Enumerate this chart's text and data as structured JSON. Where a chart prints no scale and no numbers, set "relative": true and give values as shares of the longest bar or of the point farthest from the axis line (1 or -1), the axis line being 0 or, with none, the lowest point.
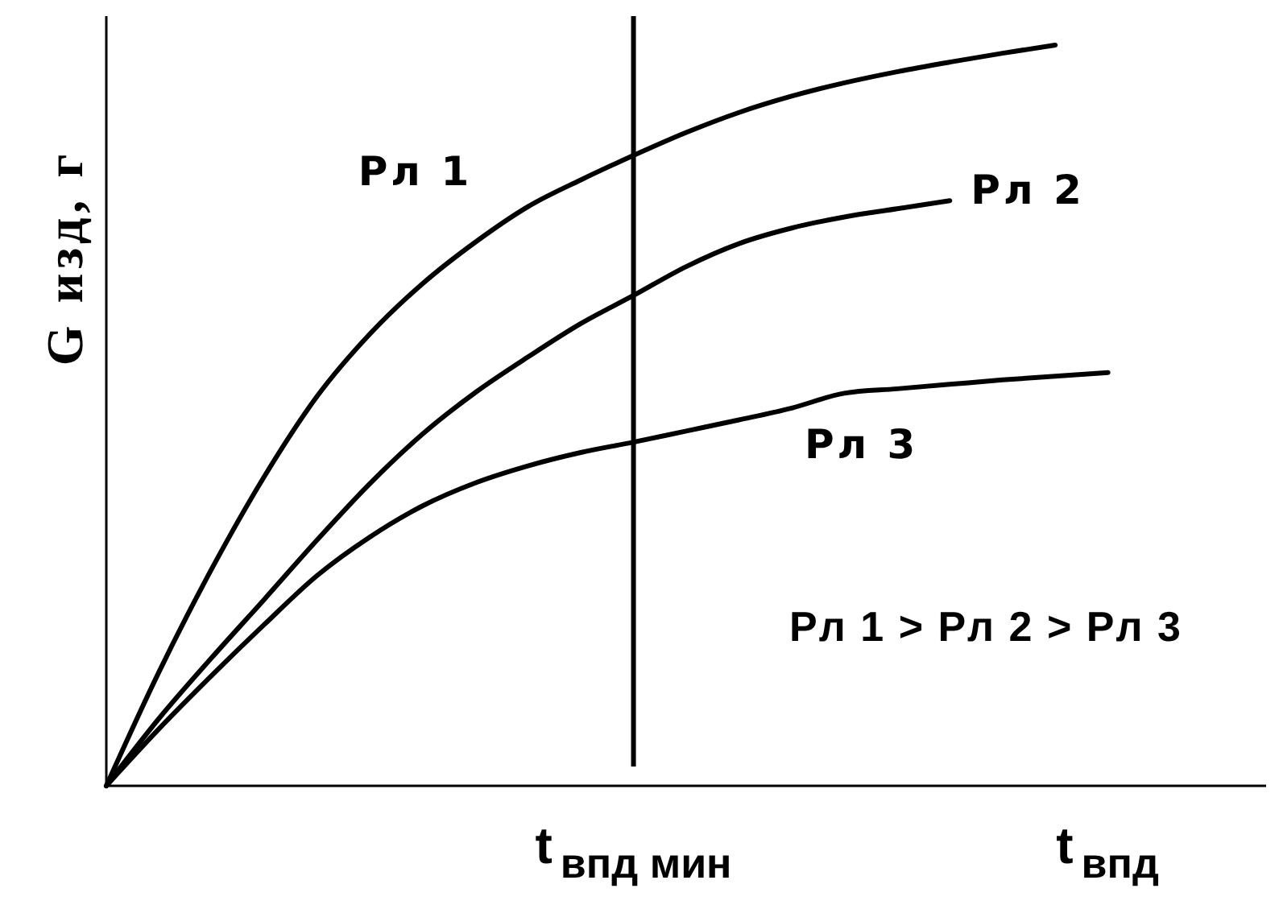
{
  "chart_data": {
    "type": "line",
    "ylabel": "G изд, г",
    "relative": true,
    "line_style": "solid",
    "categories": [
      null,
      null,
      null,
      null,
      null,
      null,
      null,
      null,
      null,
      null,
      "t$_{впд мин}$",
      null,
      null,
      null,
      null,
      null,
      null,
      null,
      null,
      "t$_{впд}$",
      null,
      null,
      null
    ],
    "series": [
      {
        "name": "Рл 1",
        "color": "#000000",
        "values": [
          0,
          0.154,
          0.293,
          0.418,
          0.526,
          0.61,
          0.678,
          0.734,
          0.782,
          0.818,
          0.851,
          0.882,
          0.909,
          0.931,
          0.949,
          0.964,
          0.977,
          0.989,
          1,
          null,
          null,
          null,
          null
        ]
      },
      {
        "name": "Рл 2",
        "color": "#000000",
        "values": [
          0,
          0.091,
          0.173,
          0.252,
          0.332,
          0.408,
          0.475,
          0.531,
          0.579,
          0.624,
          0.662,
          0.701,
          0.732,
          0.753,
          0.768,
          0.779,
          0.79,
          null,
          null,
          null,
          null,
          null,
          null
        ]
      },
      {
        "name": "Рл 3",
        "color": "#000000",
        "values": [
          0,
          0.077,
          0.149,
          0.218,
          0.284,
          0.336,
          0.378,
          0.409,
          0.432,
          0.45,
          0.464,
          0.479,
          0.494,
          0.51,
          0.53,
          0.536,
          0.542,
          0.548,
          0.553,
          0.558,
          null,
          null,
          null
        ]
      }
    ],
    "ref_lines": [
      {
        "axis": "x",
        "value": "t$_{впд мин}$",
        "color": "#000000"
      }
    ],
    "annotations": [
      "Рл 1 > Рл 2 > Рл 3"
    ]
  }
}
